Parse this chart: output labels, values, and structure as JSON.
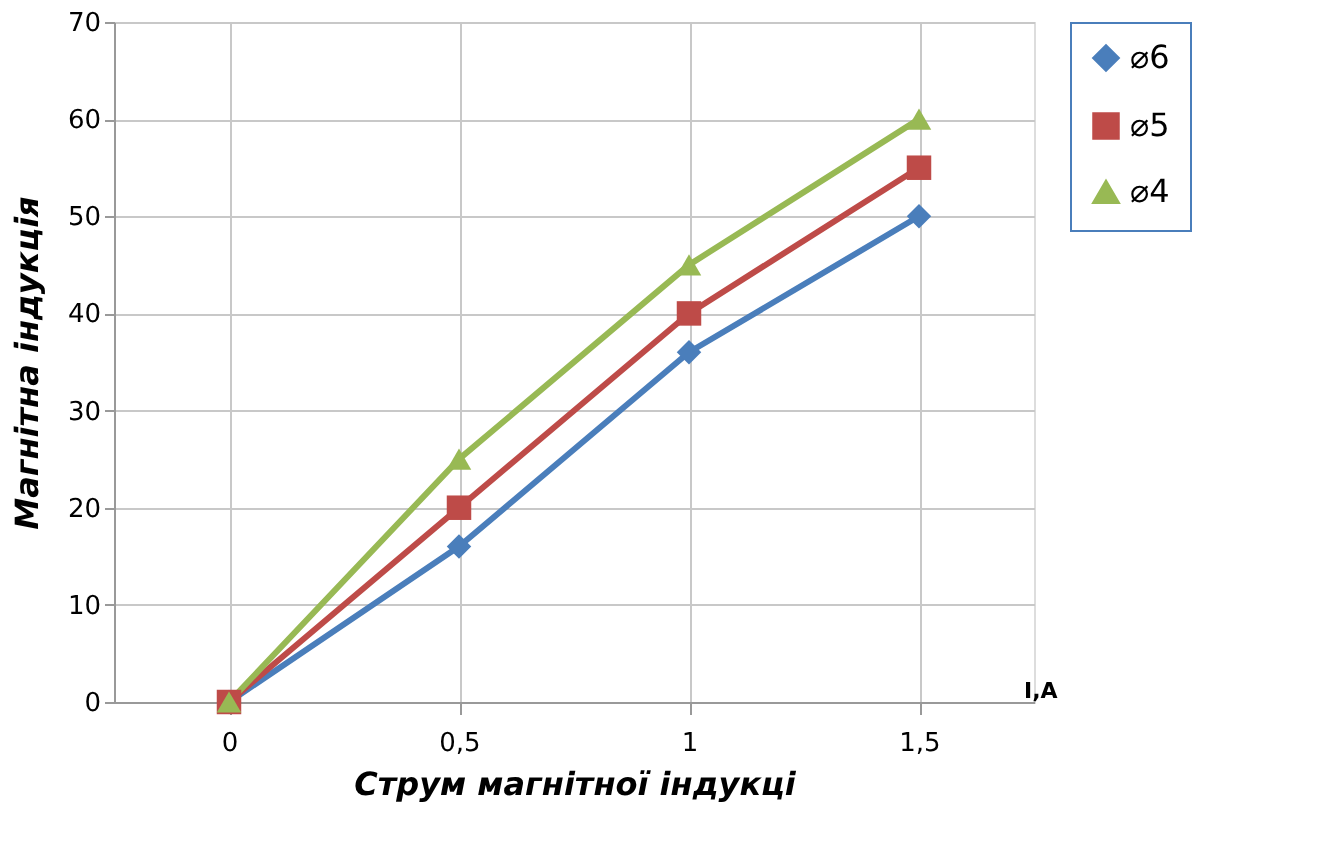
{
  "chart_data": {
    "type": "line",
    "xlabel": "Струм магнітноï  індукці",
    "ylabel": "Магнітна індукція",
    "categories": [
      "0",
      "0,5",
      "1",
      "1,5"
    ],
    "series": [
      {
        "name": "⌀6",
        "color": "#4a7ebb",
        "marker": "diamond",
        "values": [
          0,
          16,
          36,
          50
        ]
      },
      {
        "name": "⌀5",
        "color": "#be4b48",
        "marker": "square",
        "values": [
          0,
          20,
          40,
          55
        ]
      },
      {
        "name": "⌀4",
        "color": "#98b954",
        "marker": "triangle",
        "values": [
          0,
          25,
          45,
          60
        ]
      }
    ],
    "ylim": [
      0,
      70
    ],
    "yticks": [
      0,
      10,
      20,
      30,
      40,
      50,
      60,
      70
    ],
    "grid": true,
    "legend": "right",
    "line_style": "solid",
    "annotations": [
      "I,A"
    ]
  }
}
